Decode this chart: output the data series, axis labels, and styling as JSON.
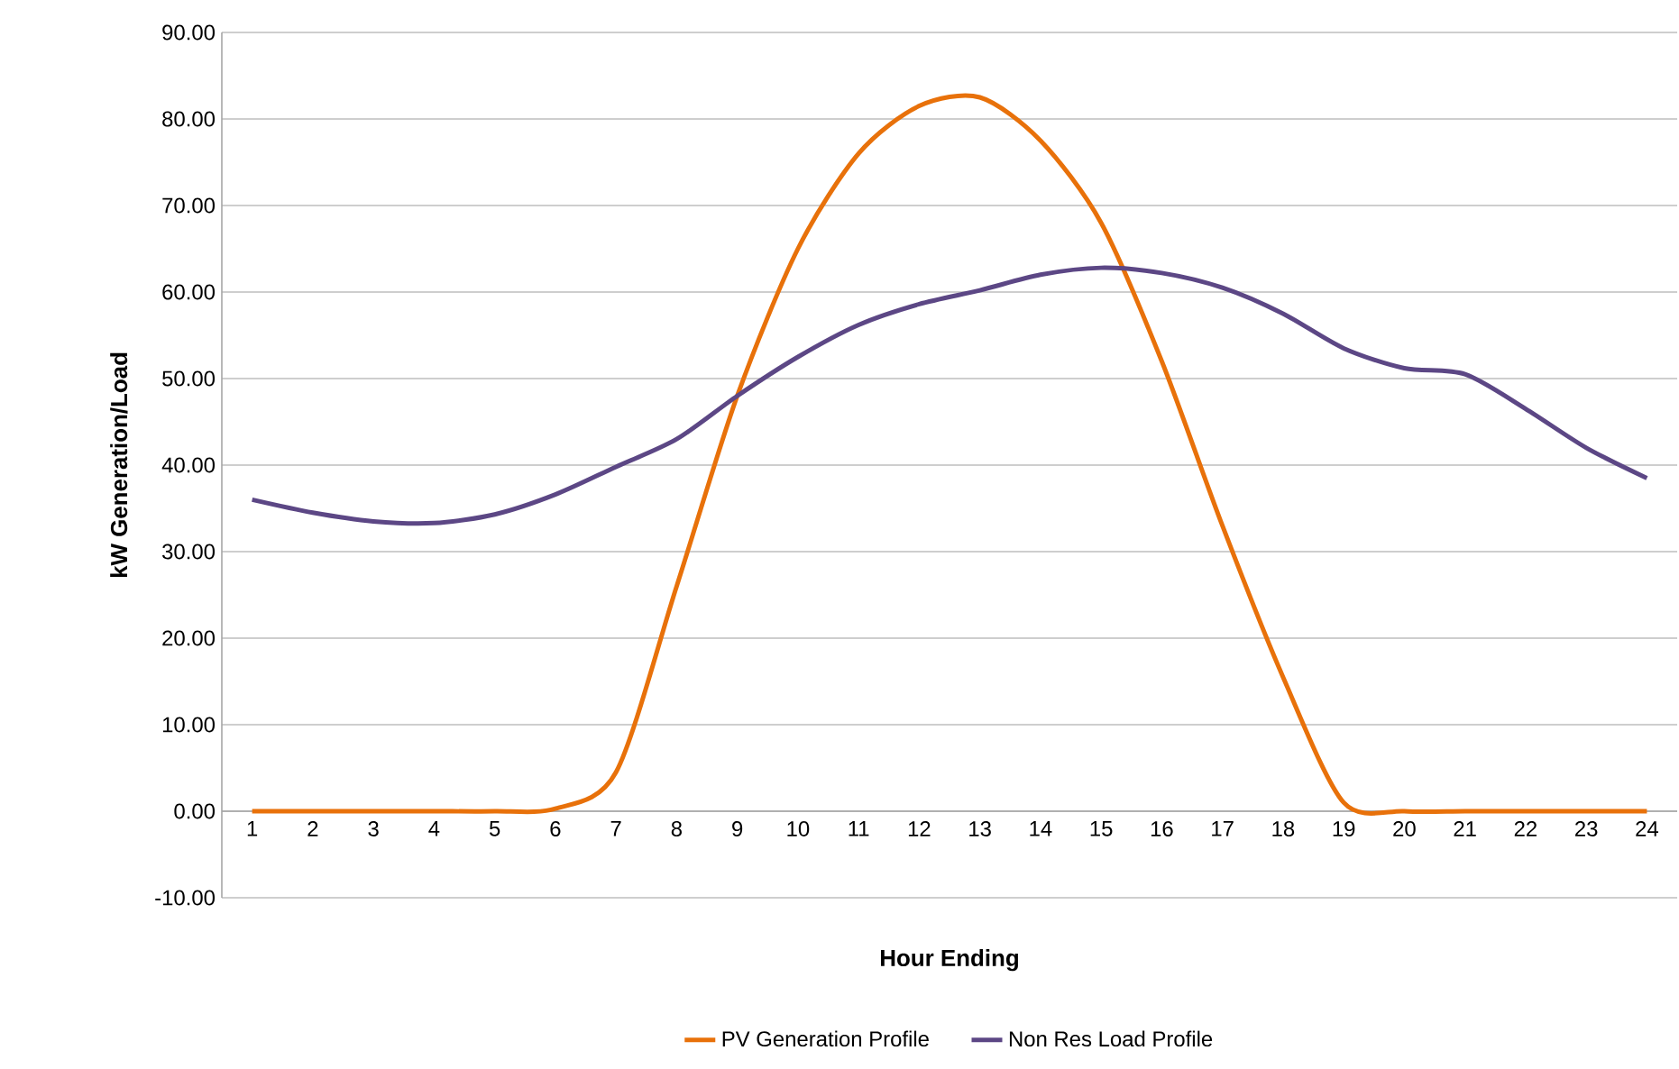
{
  "chart_data": {
    "type": "line",
    "xlabel": "Hour Ending",
    "ylabel": "kW Generation/Load",
    "categories": [
      "1",
      "2",
      "3",
      "4",
      "5",
      "6",
      "7",
      "8",
      "9",
      "10",
      "11",
      "12",
      "13",
      "14",
      "15",
      "16",
      "17",
      "18",
      "19",
      "20",
      "21",
      "22",
      "23",
      "24"
    ],
    "ylim": [
      -10,
      90
    ],
    "yticks": [
      {
        "value": -10,
        "label": "-10.00"
      },
      {
        "value": 0,
        "label": "0.00"
      },
      {
        "value": 10,
        "label": "10.00"
      },
      {
        "value": 20,
        "label": "20.00"
      },
      {
        "value": 30,
        "label": "30.00"
      },
      {
        "value": 40,
        "label": "40.00"
      },
      {
        "value": 50,
        "label": "50.00"
      },
      {
        "value": 60,
        "label": "60.00"
      },
      {
        "value": 70,
        "label": "70.00"
      },
      {
        "value": 80,
        "label": "80.00"
      },
      {
        "value": 90,
        "label": "90.00"
      }
    ],
    "grid": "y",
    "legend": "bottom",
    "marker": "none",
    "line_style": "solid",
    "series": [
      {
        "name": "PV Generation Profile",
        "color": "#e8710a",
        "values": [
          0,
          0,
          0,
          0,
          0,
          0.3,
          4.5,
          26,
          48,
          65,
          76,
          81.5,
          82.5,
          77.5,
          68,
          52,
          33,
          15.5,
          1,
          0,
          0,
          0,
          0,
          0
        ]
      },
      {
        "name": "Non Res Load Profile",
        "color": "#5c4785",
        "values": [
          36,
          34.5,
          33.5,
          33.3,
          34.3,
          36.6,
          39.8,
          43,
          48,
          52.5,
          56.2,
          58.6,
          60.2,
          62,
          62.8,
          62.2,
          60.5,
          57.5,
          53.5,
          51.2,
          50.5,
          46.5,
          42,
          38.5
        ]
      }
    ]
  }
}
